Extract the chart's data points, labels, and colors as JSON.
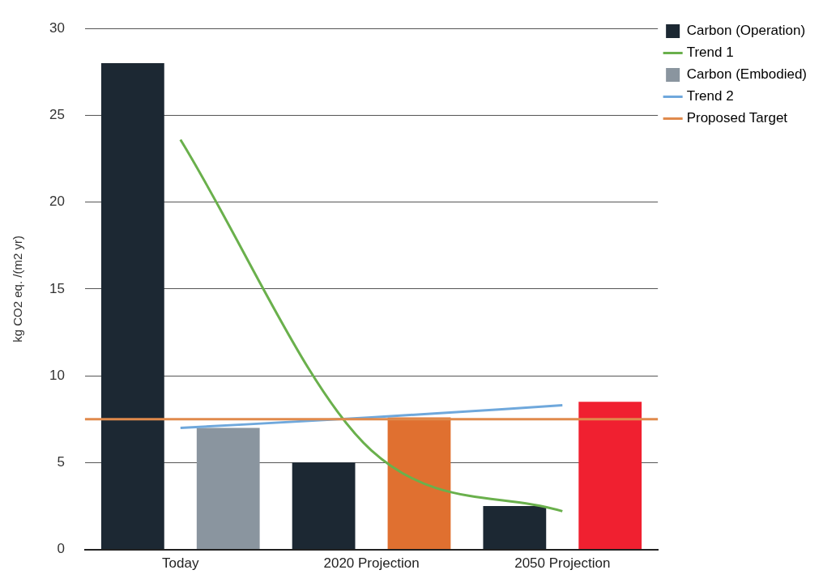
{
  "chart_data": {
    "type": "bar",
    "ylabel": "kg CO2 eq. /(m2 yr)",
    "categories": [
      "Today",
      "2020 Projection",
      "2050 Projection"
    ],
    "series": [
      {
        "name": "Carbon (Operation)",
        "color": "#1c2833",
        "values": [
          28,
          5,
          2.5
        ]
      },
      {
        "name": "Trend 1",
        "type": "line",
        "color": "#6ab04c",
        "values": [
          23.6,
          5.7,
          2.2
        ]
      },
      {
        "name": "Carbon (Embodied)",
        "color": "#8a959f",
        "colors": [
          "#8a959f",
          "#e07030",
          "#f02030"
        ],
        "values": [
          7,
          7.6,
          8.5
        ]
      },
      {
        "name": "Trend 2",
        "type": "line",
        "color": "#6fa8dc",
        "values": [
          7,
          7.6,
          8.3
        ]
      }
    ],
    "ref_lines": [
      {
        "axis": "y",
        "value": 7.5,
        "label": "Proposed Target",
        "color": "#e08a4c"
      }
    ],
    "ylim": [
      0,
      30
    ],
    "yticks": [
      0,
      5,
      10,
      15,
      20,
      25,
      30
    ],
    "grid": "y",
    "legend": "top right",
    "marker": "none"
  }
}
